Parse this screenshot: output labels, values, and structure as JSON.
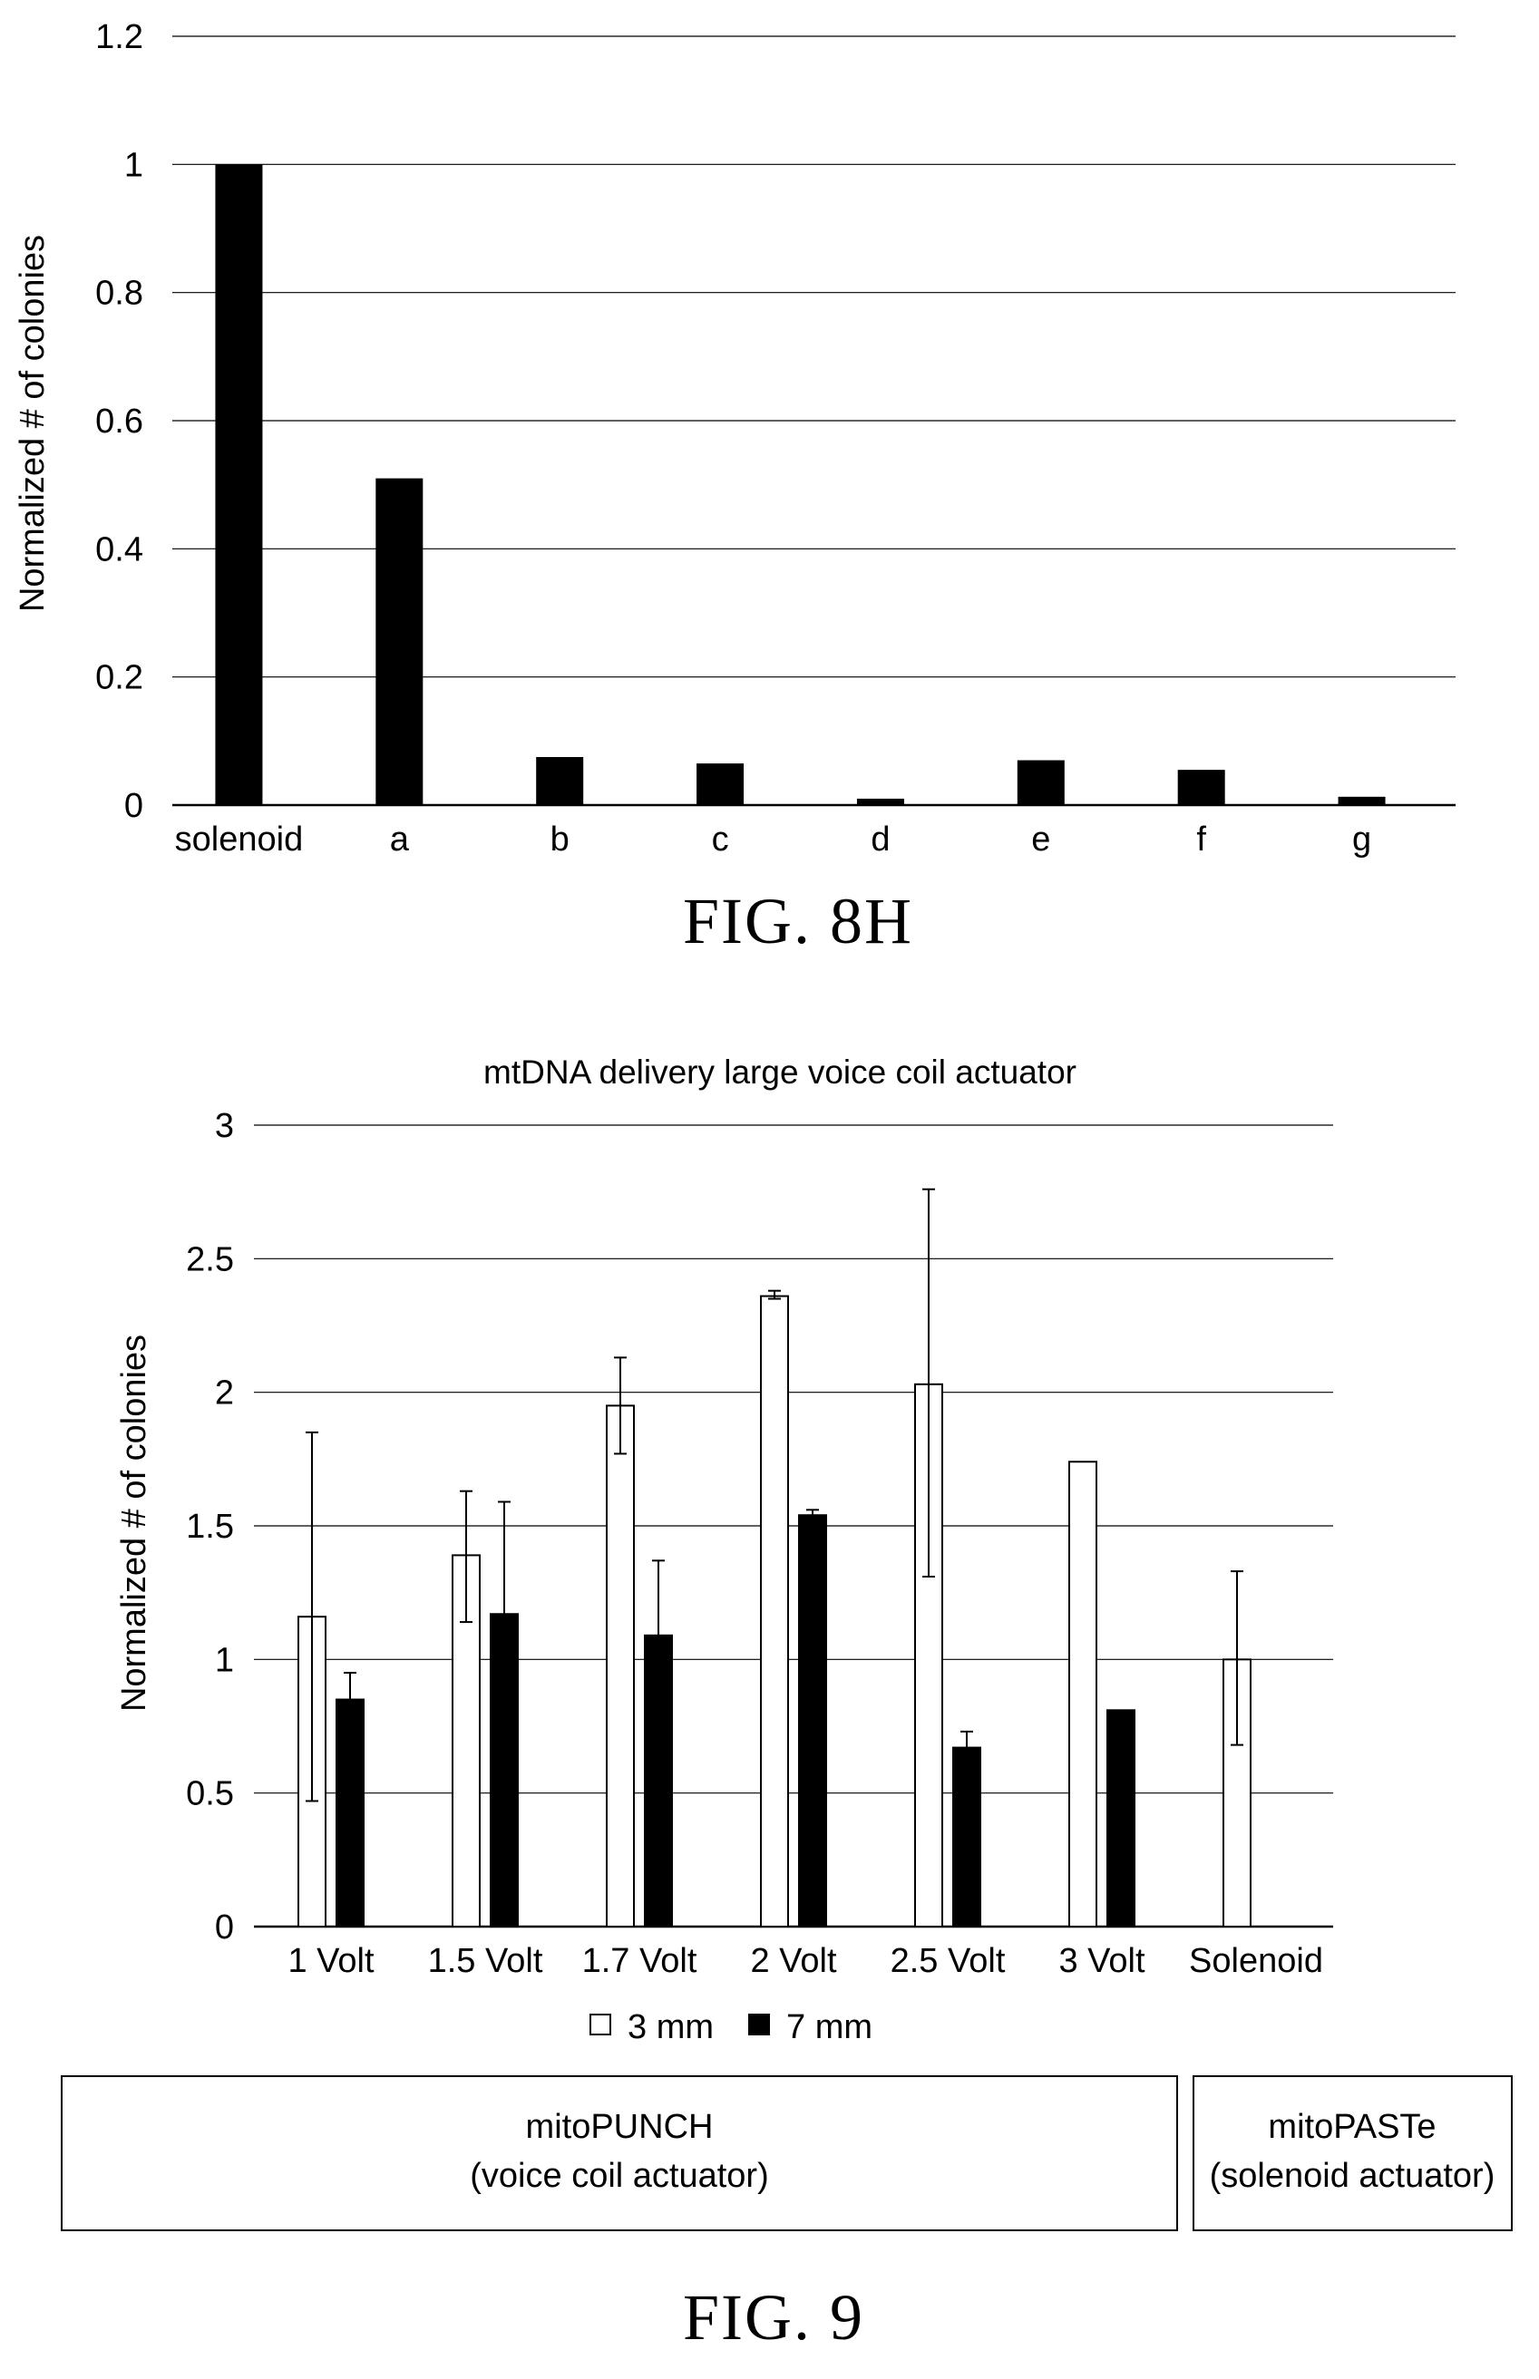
{
  "chart_data": [
    {
      "type": "bar",
      "ylabel": "Normalized # of colonies",
      "ylim": [
        0,
        1.2
      ],
      "yticks": [
        "0",
        "0.2",
        "0.4",
        "0.6",
        "0.8",
        "1",
        "1.2"
      ],
      "categories": [
        "solenoid",
        "a",
        "b",
        "c",
        "d",
        "e",
        "f",
        "g"
      ],
      "values": [
        1.0,
        0.51,
        0.075,
        0.065,
        0.01,
        0.07,
        0.055,
        0.013
      ],
      "bar_color": "#000000",
      "grid": true
    },
    {
      "type": "bar",
      "title": "mtDNA delivery large voice coil actuator",
      "ylabel": "Normalized # of colonies",
      "ylim": [
        0,
        3
      ],
      "yticks": [
        "0",
        "0.5",
        "1",
        "1.5",
        "2",
        "2.5",
        "3"
      ],
      "categories": [
        "1 Volt",
        "1.5 Volt",
        "1.7 Volt",
        "2 Volt",
        "2.5 Volt",
        "3 Volt",
        "Solenoid"
      ],
      "series": [
        {
          "name": "3 mm",
          "color": "#ffffff",
          "values": [
            1.16,
            1.39,
            1.95,
            2.36,
            2.03,
            1.74,
            1.0
          ],
          "error_low": [
            0.47,
            1.14,
            1.77,
            2.35,
            1.31,
            null,
            0.68
          ],
          "error_high": [
            1.85,
            1.63,
            2.13,
            2.38,
            2.76,
            null,
            1.33
          ]
        },
        {
          "name": "7 mm",
          "color": "#000000",
          "values": [
            0.85,
            1.17,
            1.09,
            1.54,
            0.67,
            0.81,
            null
          ],
          "error_low": [
            null,
            null,
            null,
            null,
            null,
            null,
            null
          ],
          "error_high": [
            0.95,
            1.59,
            1.37,
            1.56,
            0.73,
            null,
            null
          ]
        }
      ],
      "legend_position": "bottom",
      "grid": true
    }
  ],
  "figure_labels": {
    "fig8h": "FIG. 8H",
    "fig9": "FIG. 9"
  },
  "groups": {
    "left_line1": "mitoPUNCH",
    "left_line2": "(voice coil actuator)",
    "right_line1": "mitoPASTe",
    "right_line2": "(solenoid actuator)"
  }
}
